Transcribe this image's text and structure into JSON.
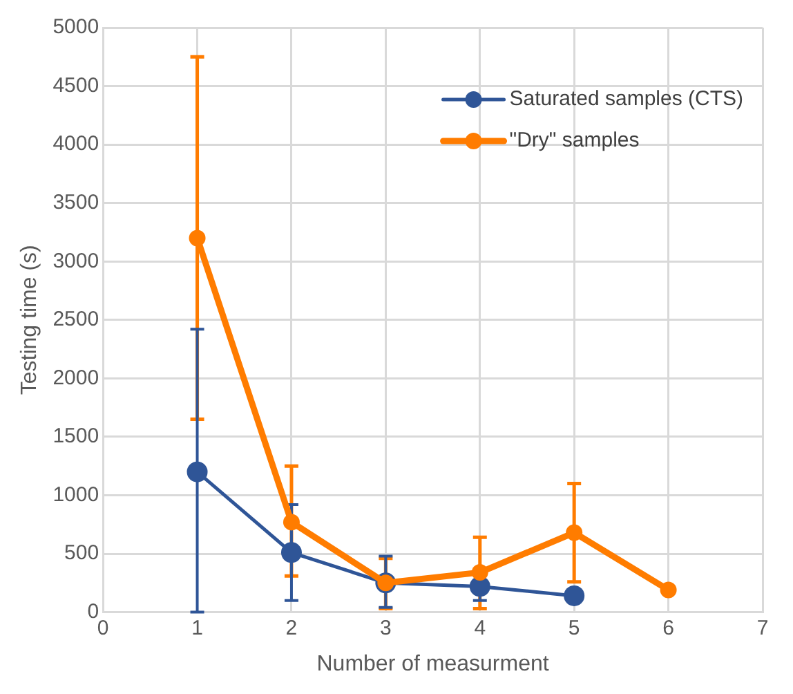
{
  "chart_data": {
    "type": "line",
    "xlabel": "Number of measurment",
    "ylabel": "Testing time (s)",
    "xlim": [
      0,
      7
    ],
    "xticks": [
      0,
      1,
      2,
      3,
      4,
      5,
      6,
      7
    ],
    "ylim": [
      0,
      5000
    ],
    "yticks": [
      0,
      500,
      1000,
      1500,
      2000,
      2500,
      3000,
      3500,
      4000,
      4500,
      5000
    ],
    "grid": true,
    "legend": "top right",
    "marker": "circle",
    "line_style": "solid",
    "series": [
      {
        "name": "Saturated samples (CTS)",
        "color": "#2f5597",
        "x": [
          1,
          2,
          3,
          4,
          5
        ],
        "values": [
          1200,
          510,
          250,
          220,
          140
        ],
        "errors": [
          [
            0,
            2420
          ],
          [
            100,
            920
          ],
          [
            40,
            480
          ],
          [
            100,
            220
          ],
          null
        ]
      },
      {
        "name": "\"Dry\" samples",
        "color": "#ff7c00",
        "x": [
          1,
          2,
          3,
          4,
          5,
          6
        ],
        "values": [
          3200,
          770,
          250,
          340,
          680,
          190
        ],
        "errors": [
          [
            1650,
            4750
          ],
          [
            310,
            1250
          ],
          [
            30,
            460
          ],
          [
            30,
            640
          ],
          [
            260,
            1100
          ],
          null
        ]
      }
    ]
  }
}
